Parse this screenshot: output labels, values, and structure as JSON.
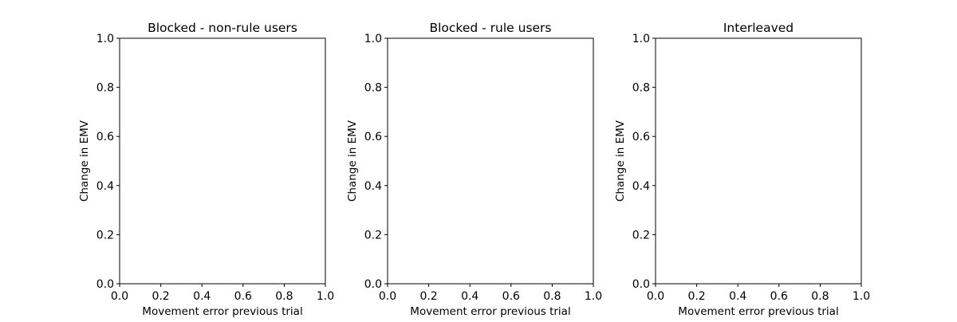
{
  "chart_data": [
    {
      "type": "scatter",
      "title": "Blocked - non-rule users",
      "xlabel": "Movement error previous trial",
      "ylabel": "Change in EMV",
      "xlim": [
        0.0,
        1.0
      ],
      "ylim": [
        0.0,
        1.0
      ],
      "xticks": [
        "0.0",
        "0.2",
        "0.4",
        "0.6",
        "0.8",
        "1.0"
      ],
      "yticks": [
        "0.0",
        "0.2",
        "0.4",
        "0.6",
        "0.8",
        "1.0"
      ],
      "series": [],
      "grid": false
    },
    {
      "type": "scatter",
      "title": "Blocked - rule users",
      "xlabel": "Movement error previous trial",
      "ylabel": "Change in EMV",
      "xlim": [
        0.0,
        1.0
      ],
      "ylim": [
        0.0,
        1.0
      ],
      "xticks": [
        "0.0",
        "0.2",
        "0.4",
        "0.6",
        "0.8",
        "1.0"
      ],
      "yticks": [
        "0.0",
        "0.2",
        "0.4",
        "0.6",
        "0.8",
        "1.0"
      ],
      "series": [],
      "grid": false
    },
    {
      "type": "scatter",
      "title": "Interleaved",
      "xlabel": "Movement error previous trial",
      "ylabel": "Change in EMV",
      "xlim": [
        0.0,
        1.0
      ],
      "ylim": [
        0.0,
        1.0
      ],
      "xticks": [
        "0.0",
        "0.2",
        "0.4",
        "0.6",
        "0.8",
        "1.0"
      ],
      "yticks": [
        "0.0",
        "0.2",
        "0.4",
        "0.6",
        "0.8",
        "1.0"
      ],
      "series": [],
      "grid": false
    }
  ]
}
